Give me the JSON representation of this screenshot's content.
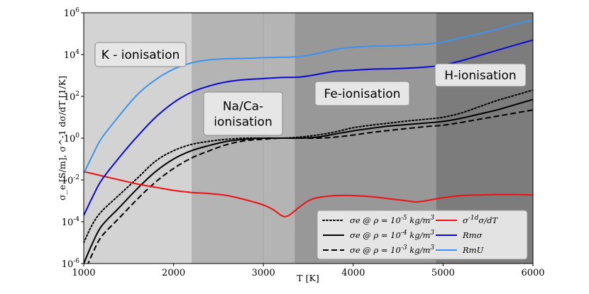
{
  "chart_data": {
    "type": "line",
    "xlabel": "T [K]",
    "ylabel": "σ_e [S/m], σ^-1 dσ/dT [1/K]",
    "xlim": [
      1000,
      6000
    ],
    "ylim": [
      1e-06,
      1000000.0
    ],
    "yscale": "log",
    "x_ticks": [
      1000,
      2000,
      3000,
      4000,
      5000,
      6000
    ],
    "y_ticks": [
      {
        "value": 1e-06,
        "base": "10",
        "exp": "-6"
      },
      {
        "value": 0.0001,
        "base": "10",
        "exp": "-4"
      },
      {
        "value": 0.01,
        "base": "10",
        "exp": "-2"
      },
      {
        "value": 1.0,
        "base": "10",
        "exp": "0"
      },
      {
        "value": 100.0,
        "base": "10",
        "exp": "2"
      },
      {
        "value": 10000.0,
        "base": "10",
        "exp": "4"
      },
      {
        "value": 1000000.0,
        "base": "10",
        "exp": "6"
      }
    ],
    "regions": [
      {
        "name": "K-region",
        "x0": 1000,
        "x1": 2200,
        "color": "#d3d3d3"
      },
      {
        "name": "Na-region",
        "x0": 2200,
        "x1": 3350,
        "color": "#b4b4b4"
      },
      {
        "name": "Fe-region",
        "x0": 3350,
        "x1": 4920,
        "color": "#989898"
      },
      {
        "name": "H-region",
        "x0": 4920,
        "x1": 6000,
        "color": "#7c7c7c"
      }
    ],
    "region_labels": [
      {
        "lines": [
          "K - ionisation"
        ]
      },
      {
        "lines": [
          "Na/Ca-",
          "ionisation"
        ]
      },
      {
        "lines": [
          "Fe-ionisation"
        ]
      },
      {
        "lines": [
          "H-ionisation"
        ]
      }
    ],
    "series": [
      {
        "name": "sigma_e rho 1e-5",
        "label": "σe @ ρ = 10^-5 kg/m^3",
        "color": "#000000",
        "dash": "dotted",
        "x": [
          1000,
          1100,
          1200,
          1400,
          1600,
          1800,
          2000,
          2200,
          2400,
          2600,
          2800,
          3000,
          3200,
          3400,
          3600,
          3800,
          4000,
          4200,
          4400,
          4600,
          4800,
          5000,
          5200,
          5400,
          5600,
          5800,
          6000
        ],
        "y": [
          -5.0,
          -4.1,
          -3.5,
          -2.7,
          -1.9,
          -1.1,
          -0.6,
          -0.3,
          -0.15,
          -0.05,
          0.0,
          0.0,
          0.0,
          0.05,
          0.15,
          0.3,
          0.5,
          0.62,
          0.72,
          0.82,
          0.9,
          1.0,
          1.2,
          1.5,
          1.8,
          2.05,
          2.3
        ]
      },
      {
        "name": "sigma_e rho 1e-4",
        "label": "σe @ ρ = 10^-4 kg/m^3",
        "color": "#000000",
        "dash": "solid",
        "x": [
          1000,
          1100,
          1200,
          1400,
          1600,
          1800,
          2000,
          2200,
          2400,
          2600,
          2800,
          3000,
          3200,
          3400,
          3600,
          3800,
          4000,
          4200,
          4400,
          4600,
          4800,
          5000,
          5200,
          5400,
          5600,
          5800,
          6000
        ],
        "y": [
          -6.0,
          -5.0,
          -4.2,
          -3.3,
          -2.4,
          -1.6,
          -1.0,
          -0.6,
          -0.35,
          -0.15,
          -0.05,
          0.0,
          0.0,
          0.0,
          0.05,
          0.2,
          0.35,
          0.47,
          0.58,
          0.65,
          0.72,
          0.8,
          0.95,
          1.15,
          1.35,
          1.6,
          1.85
        ]
      },
      {
        "name": "sigma_e rho 1e-3",
        "label": "σe @ ρ = 10^-3 kg/m^3",
        "color": "#000000",
        "dash": "dashed",
        "x": [
          1000,
          1100,
          1200,
          1400,
          1600,
          1800,
          2000,
          2200,
          2400,
          2600,
          2800,
          3000,
          3200,
          3400,
          3600,
          3800,
          4000,
          4200,
          4400,
          4600,
          4800,
          5000,
          5200,
          5400,
          5600,
          5800,
          6000
        ],
        "y": [
          -6.5,
          -5.5,
          -4.7,
          -3.8,
          -2.9,
          -2.1,
          -1.45,
          -0.95,
          -0.6,
          -0.3,
          -0.12,
          -0.05,
          0.0,
          0.0,
          0.0,
          0.05,
          0.15,
          0.27,
          0.37,
          0.46,
          0.55,
          0.62,
          0.75,
          0.9,
          1.05,
          1.2,
          1.35
        ]
      },
      {
        "name": "dsigma dT",
        "label": "σ^-1dσ/dT",
        "color": "#ee1111",
        "dash": "solid",
        "x": [
          1000,
          1200,
          1400,
          1600,
          1800,
          2000,
          2200,
          2400,
          2600,
          2800,
          3000,
          3100,
          3200,
          3250,
          3300,
          3400,
          3500,
          3600,
          3800,
          4000,
          4200,
          4400,
          4600,
          4700,
          4800,
          5000,
          5200,
          5400,
          5600,
          5800,
          6000
        ],
        "y": [
          -1.6,
          -1.8,
          -2.0,
          -2.2,
          -2.35,
          -2.5,
          -2.6,
          -2.65,
          -2.75,
          -2.95,
          -3.2,
          -3.4,
          -3.7,
          -3.75,
          -3.65,
          -3.3,
          -3.0,
          -2.85,
          -2.75,
          -2.75,
          -2.8,
          -2.9,
          -3.0,
          -3.05,
          -3.0,
          -2.85,
          -2.75,
          -2.72,
          -2.7,
          -2.7,
          -2.72
        ]
      },
      {
        "name": "Rm sigma",
        "label": "Rmσ",
        "color": "#0a0ad8",
        "dash": "solid",
        "x": [
          1000,
          1100,
          1200,
          1400,
          1600,
          1800,
          2000,
          2200,
          2400,
          2600,
          2800,
          3000,
          3200,
          3400,
          3600,
          3800,
          4000,
          4200,
          4400,
          4600,
          4800,
          5000,
          5200,
          5400,
          5600,
          5800,
          6000
        ],
        "y": [
          -3.7,
          -2.8,
          -2.0,
          -0.9,
          0.1,
          1.0,
          1.7,
          2.2,
          2.5,
          2.7,
          2.8,
          2.85,
          2.9,
          2.92,
          3.05,
          3.2,
          3.25,
          3.3,
          3.32,
          3.35,
          3.4,
          3.5,
          3.7,
          3.95,
          4.2,
          4.45,
          4.7
        ]
      },
      {
        "name": "Rm U",
        "label": "RmU",
        "color": "#3d93ed",
        "dash": "solid",
        "x": [
          1000,
          1100,
          1200,
          1400,
          1600,
          1800,
          2000,
          2200,
          2400,
          2600,
          2800,
          3000,
          3200,
          3400,
          3600,
          3800,
          4000,
          4200,
          4400,
          4600,
          4800,
          5000,
          5200,
          5400,
          5600,
          5800,
          6000
        ],
        "y": [
          -1.7,
          -0.8,
          0.0,
          1.1,
          2.1,
          2.8,
          3.3,
          3.6,
          3.75,
          3.8,
          3.82,
          3.85,
          3.87,
          3.9,
          4.05,
          4.25,
          4.35,
          4.4,
          4.42,
          4.45,
          4.5,
          4.6,
          4.8,
          5.0,
          5.2,
          5.45,
          5.65
        ]
      }
    ]
  }
}
